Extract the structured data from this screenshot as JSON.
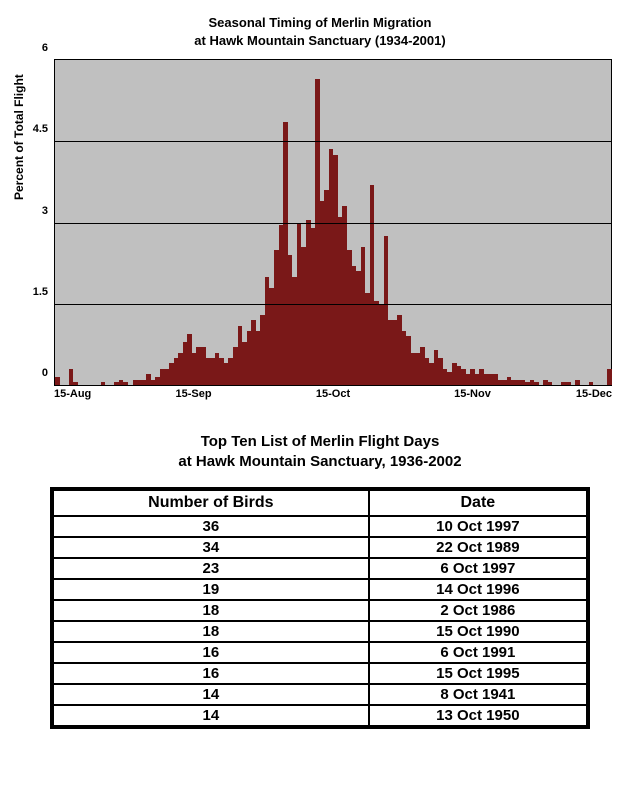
{
  "chart": {
    "type": "histogram",
    "title_line1": "Seasonal Timing of Merlin Migration",
    "title_line2": "at Hawk Mountain Sanctuary (1934-2001)",
    "ylabel": "Percent of Total Flight",
    "background_color": "#c0c0c0",
    "bar_color": "#7a1818",
    "grid_color": "#000000",
    "ylim": [
      0,
      6
    ],
    "yticks": [
      0,
      1.5,
      3,
      4.5,
      6
    ],
    "xtick_labels": [
      "15-Aug",
      "15-Sep",
      "15-Oct",
      "15-Nov",
      "15-Dec"
    ],
    "xtick_positions_pct": [
      0,
      25,
      50,
      75,
      100
    ],
    "values": [
      0.15,
      0,
      0,
      0.3,
      0.05,
      0,
      0,
      0,
      0,
      0,
      0.05,
      0,
      0,
      0.05,
      0.1,
      0.05,
      0,
      0.1,
      0.1,
      0.1,
      0.2,
      0.1,
      0.15,
      0.3,
      0.3,
      0.4,
      0.5,
      0.6,
      0.8,
      0.95,
      0.6,
      0.7,
      0.7,
      0.5,
      0.5,
      0.6,
      0.5,
      0.4,
      0.5,
      0.7,
      1.1,
      0.8,
      1.0,
      1.2,
      1.0,
      1.3,
      2.0,
      1.8,
      2.5,
      2.95,
      4.85,
      2.4,
      2.0,
      3.0,
      2.55,
      3.05,
      2.9,
      5.65,
      3.4,
      3.6,
      4.35,
      4.25,
      3.1,
      3.3,
      2.5,
      2.2,
      2.1,
      2.55,
      1.7,
      3.7,
      1.55,
      1.5,
      2.75,
      1.2,
      1.2,
      1.3,
      1.0,
      0.9,
      0.6,
      0.6,
      0.7,
      0.5,
      0.4,
      0.65,
      0.5,
      0.3,
      0.25,
      0.4,
      0.35,
      0.3,
      0.2,
      0.3,
      0.2,
      0.3,
      0.2,
      0.2,
      0.2,
      0.1,
      0.1,
      0.15,
      0.1,
      0.1,
      0.1,
      0.05,
      0.1,
      0.05,
      0,
      0.1,
      0.05,
      0,
      0,
      0.05,
      0.05,
      0,
      0.1,
      0,
      0,
      0.05,
      0,
      0,
      0,
      0.3
    ]
  },
  "table": {
    "title_line1": "Top Ten List of Merlin Flight Days",
    "title_line2": "at Hawk Mountain Sanctuary, 1936-2002",
    "columns": [
      "Number of Birds",
      "Date"
    ],
    "rows": [
      [
        "36",
        "10 Oct 1997"
      ],
      [
        "34",
        "22 Oct 1989"
      ],
      [
        "23",
        "6 Oct 1997"
      ],
      [
        "19",
        "14 Oct 1996"
      ],
      [
        "18",
        "2 Oct 1986"
      ],
      [
        "18",
        "15 Oct 1990"
      ],
      [
        "16",
        "6 Oct 1991"
      ],
      [
        "16",
        "15 Oct 1995"
      ],
      [
        "14",
        "8 Oct 1941"
      ],
      [
        "14",
        "13 Oct 1950"
      ]
    ]
  }
}
